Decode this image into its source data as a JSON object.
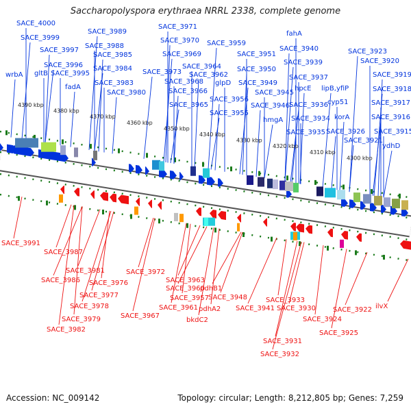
{
  "title": "Saccharopolyspora erythraea NRRL 2338, complete genome",
  "footer": {
    "accession": "Accession: NC_009142",
    "topology": "Topology: circular; Length: 8,212,805 bp; Genes: 7,259"
  },
  "colors": {
    "forward": "#0033dd",
    "reverse": "#ee1111",
    "backbone": "#666666",
    "ticks": "#1a7a1a"
  },
  "scale_ticks": [
    "4390 kbp",
    "4380 kbp",
    "4370 kbp",
    "4360 kbp",
    "4350 kbp",
    "4340 kbp",
    "4330 kbp",
    "4320 kbp",
    "4310 kbp",
    "4300 kbp"
  ],
  "forward_genes": [
    "SACE_4000",
    "wrbA",
    "SACE_3999",
    "gltB",
    "SACE_3997",
    "SACE_3996",
    "SACE_3995",
    "fadA",
    "SACE_3989",
    "SACE_3988",
    "SACE_3985",
    "SACE_3984",
    "SACE_3983",
    "SACE_3980",
    "SACE_3973",
    "SACE_3971",
    "SACE_3970",
    "SACE_3969",
    "SACE_3968",
    "SACE_3966",
    "SACE_3965",
    "SACE_3964",
    "SACE_3962",
    "SACE_3959",
    "glpD",
    "SACE_3956",
    "SACE_3955",
    "SACE_3951",
    "SACE_3950",
    "SACE_3949",
    "SACE_3945",
    "SACE_3946",
    "hmgA",
    "fahA",
    "SACE_3940",
    "SACE_3939",
    "SACE_3937",
    "hpcE",
    "SACE_3936",
    "SACE_3934",
    "SACE_3935",
    "SACE_3923",
    "SACE_3920",
    "SACE_3919",
    "lipB,yfiP",
    "cyp51",
    "korA",
    "SACE_3918",
    "SACE_3917",
    "SACE_3926",
    "SACE_3916",
    "SACE_3915",
    "SACE_3921",
    "ydhD"
  ],
  "reverse_genes": [
    "SACE_3991",
    "SACE_3987",
    "SACE_3981",
    "SACE_3986",
    "SACE_3976",
    "SACE_3972",
    "SACE_3977",
    "SACE_3978",
    "SACE_3979",
    "SACE_3982",
    "SACE_3963",
    "SACE_3960",
    "SACE_3957",
    "SACE_3961",
    "SACE_3967",
    "pdhB1",
    "pdhA2",
    "bkdC2",
    "SACE_3948",
    "SACE_3941",
    "SACE_3933",
    "SACE_3930",
    "SACE_3931",
    "SACE_3932",
    "SACE_3924",
    "SACE_3925",
    "SACE_3922",
    "ilvX"
  ]
}
